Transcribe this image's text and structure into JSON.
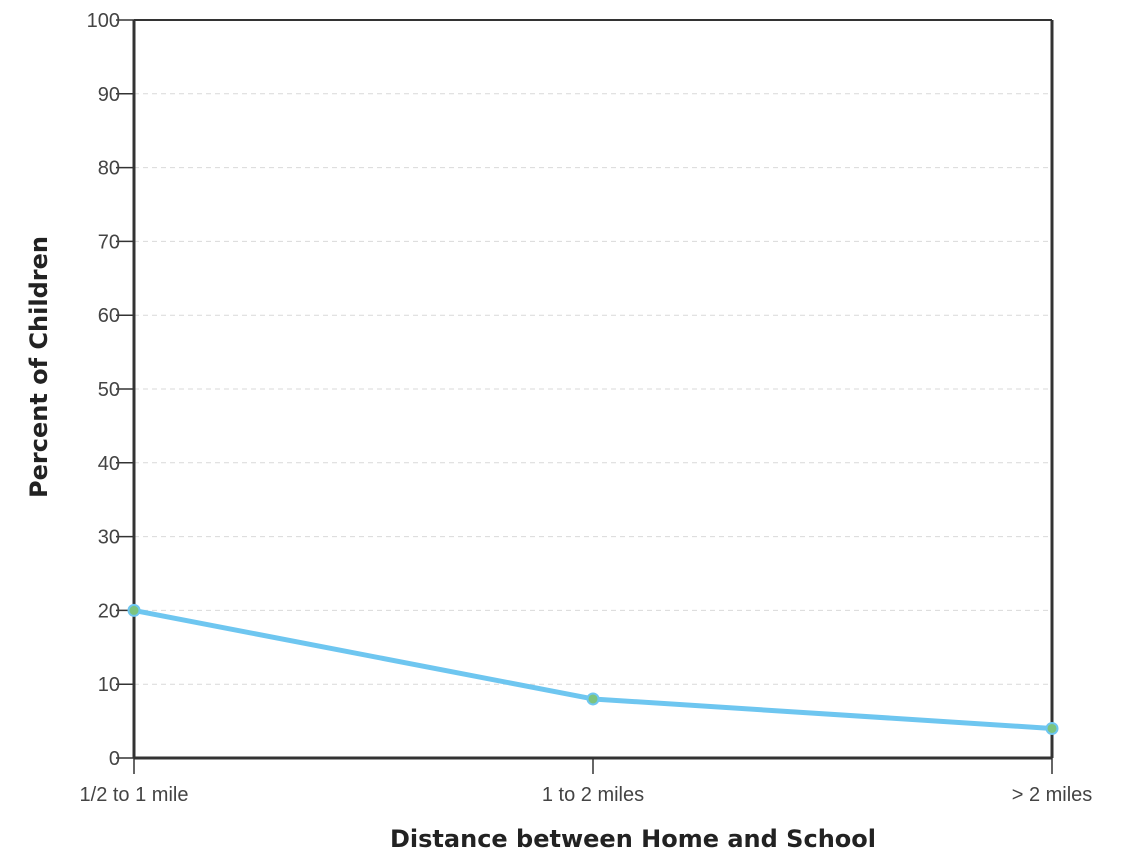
{
  "chart_data": {
    "type": "line",
    "title": "",
    "xlabel": "Distance between Home and School",
    "ylabel": "Percent of Children",
    "categories": [
      "1/2 to 1 mile",
      "1 to 2 miles",
      "> 2 miles"
    ],
    "series": [
      {
        "values": [
          20,
          8,
          4
        ]
      }
    ],
    "ylim": [
      0,
      100
    ],
    "yticks": [
      0,
      10,
      20,
      30,
      40,
      50,
      60,
      70,
      80,
      90,
      100
    ],
    "ytick_labels": [
      "0",
      "10",
      "20",
      "30",
      "40",
      "50",
      "60",
      "70",
      "80",
      "90",
      "100"
    ],
    "grid": "horizontal dashed",
    "legend": "none",
    "colors": {
      "line": "#6ec6f0",
      "marker_fill": "#7cc47f",
      "axis": "#333333",
      "grid": "#d9d9d9"
    }
  }
}
